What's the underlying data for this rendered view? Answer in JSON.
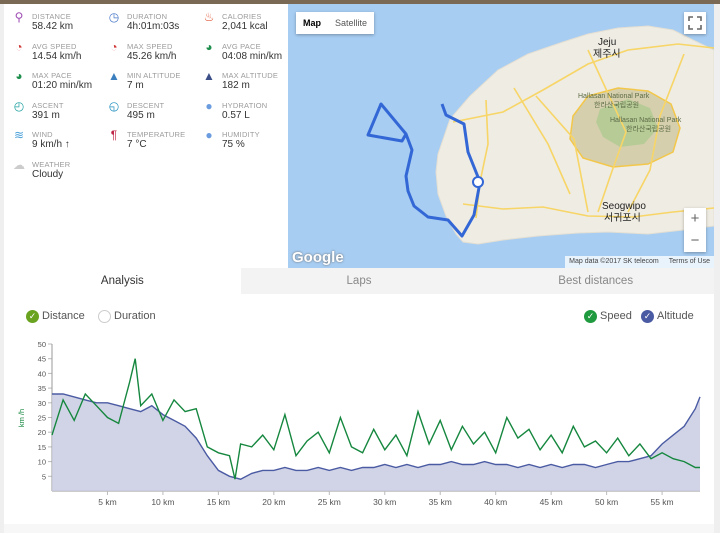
{
  "stats": [
    {
      "label": "DISTANCE",
      "value": "58.42 km",
      "icon": "route-icon",
      "color": "#a04db5"
    },
    {
      "label": "DURATION",
      "value": "4h:01m:03s",
      "icon": "stopwatch-icon",
      "color": "#4a78c8"
    },
    {
      "label": "CALORIES",
      "value": "2,041 kcal",
      "icon": "flame-icon",
      "color": "#e0573a"
    },
    {
      "label": "AVG SPEED",
      "value": "14.54 km/h",
      "icon": "speedometer-icon",
      "color": "#d13b3b"
    },
    {
      "label": "MAX SPEED",
      "value": "45.26 km/h",
      "icon": "speedometer-icon",
      "color": "#d13b3b"
    },
    {
      "label": "AVG PACE",
      "value": "04:08 min/km",
      "icon": "gauge-icon",
      "color": "#1f8f4e"
    },
    {
      "label": "MAX PACE",
      "value": "01:20 min/km",
      "icon": "gauge-icon",
      "color": "#1f8f4e"
    },
    {
      "label": "MIN ALTITUDE",
      "value": "7 m",
      "icon": "mountain-icon",
      "color": "#3b7fbf"
    },
    {
      "label": "MAX ALTITUDE",
      "value": "182 m",
      "icon": "mountain-icon",
      "color": "#3b4e88"
    },
    {
      "label": "ASCENT",
      "value": "391 m",
      "icon": "ascent-icon",
      "color": "#1fa0a0"
    },
    {
      "label": "DESCENT",
      "value": "495 m",
      "icon": "descent-icon",
      "color": "#1f8fbf"
    },
    {
      "label": "HYDRATION",
      "value": "0.57 L",
      "icon": "water-drops-icon",
      "color": "#6b9cdf"
    },
    {
      "label": "WIND",
      "value": "9 km/h ↑",
      "icon": "wind-icon",
      "color": "#4aa0d8"
    },
    {
      "label": "TEMPERATURE",
      "value": "7 °C",
      "icon": "thermometer-icon",
      "color": "#c0284a"
    },
    {
      "label": "HUMIDITY",
      "value": "75 %",
      "icon": "humidity-icon",
      "color": "#6b9cdf"
    },
    {
      "label": "WEATHER",
      "value": "Cloudy",
      "icon": "cloud-icon",
      "color": "#cccccc"
    }
  ],
  "map": {
    "map_type_buttons": [
      "Map",
      "Satellite"
    ],
    "labels": [
      {
        "text": "Jeju",
        "id": "jeju-en"
      },
      {
        "text": "제주시",
        "id": "jeju-ko"
      },
      {
        "text": "Hallasan National Park",
        "id": "hallasan-en-1"
      },
      {
        "text": "한라산국립공원",
        "id": "hallasan-ko-1"
      },
      {
        "text": "Hallasan National Park",
        "id": "hallasan-en-2"
      },
      {
        "text": "한라산국립공원",
        "id": "hallasan-ko-2"
      },
      {
        "text": "Seogwipo",
        "id": "seogwipo-en"
      },
      {
        "text": "서귀포시",
        "id": "seogwipo-ko"
      }
    ],
    "zoom_in": "+",
    "zoom_out": "−",
    "logo": "Google",
    "attribution": "Map data ©2017 SK telecom",
    "terms": "Terms of Use"
  },
  "tabs": [
    "Analysis",
    "Laps",
    "Best distances"
  ],
  "toggles": {
    "distance": "Distance",
    "duration": "Duration",
    "speed": "Speed",
    "altitude": "Altitude"
  },
  "colors": {
    "speed": "#16873f",
    "altitude": "#4b5ba3",
    "altitude_fill": "#c9cde2",
    "check_green": "#1f9a3e",
    "check_lime": "#6aa320"
  },
  "chart_data": {
    "type": "line",
    "ylabel": "km /h",
    "ylim": [
      0,
      50
    ],
    "y_ticks": [
      5,
      10,
      15,
      20,
      25,
      30,
      35,
      40,
      45,
      50
    ],
    "xlim": [
      0,
      58.42
    ],
    "x_ticks": [
      "5 km",
      "10 km",
      "15 km",
      "20 km",
      "25 km",
      "30 km",
      "35 km",
      "40 km",
      "45 km",
      "50 km",
      "55 km"
    ],
    "x_tick_values": [
      5,
      10,
      15,
      20,
      25,
      30,
      35,
      40,
      45,
      50,
      55
    ],
    "series": [
      {
        "name": "Speed",
        "x": [
          0,
          1,
          2,
          3,
          4,
          5,
          6,
          7,
          7.5,
          8,
          9,
          10,
          11,
          12,
          13,
          14,
          15,
          16,
          16.5,
          17,
          18,
          19,
          20,
          21,
          22,
          23,
          24,
          25,
          26,
          27,
          28,
          29,
          30,
          31,
          32,
          33,
          34,
          35,
          36,
          37,
          38,
          39,
          40,
          41,
          42,
          43,
          44,
          45,
          46,
          47,
          48,
          49,
          50,
          51,
          52,
          53,
          54,
          55,
          56,
          57,
          58,
          58.42
        ],
        "y": [
          19,
          31,
          24,
          33,
          29,
          25,
          23,
          37,
          45,
          29,
          33,
          24,
          31,
          27,
          28,
          15,
          13,
          12,
          4,
          16,
          15,
          19,
          14,
          26,
          12,
          17,
          20,
          13,
          25,
          15,
          13,
          21,
          14,
          19,
          12,
          27,
          16,
          24,
          14,
          22,
          16,
          20,
          13,
          25,
          18,
          21,
          14,
          19,
          13,
          22,
          15,
          17,
          13,
          18,
          12,
          16,
          11,
          13,
          11,
          10,
          8,
          8
        ]
      },
      {
        "name": "Altitude",
        "x": [
          0,
          1,
          2,
          3,
          4,
          5,
          6,
          7,
          8,
          9,
          10,
          11,
          12,
          13,
          14,
          15,
          16,
          17,
          18,
          19,
          20,
          21,
          22,
          23,
          24,
          25,
          26,
          27,
          28,
          29,
          30,
          31,
          32,
          33,
          34,
          35,
          36,
          37,
          38,
          39,
          40,
          41,
          42,
          43,
          44,
          45,
          46,
          47,
          48,
          49,
          50,
          51,
          52,
          53,
          54,
          55,
          56,
          57,
          58,
          58.42
        ],
        "y": [
          33,
          33,
          32,
          31,
          30,
          30,
          29,
          28,
          27,
          29,
          26,
          24,
          22,
          18,
          12,
          7,
          5,
          4,
          6,
          7,
          7,
          8,
          7,
          7,
          8,
          7,
          8,
          7,
          8,
          8,
          9,
          8,
          9,
          8,
          9,
          9,
          10,
          9,
          9,
          10,
          9,
          9,
          8,
          9,
          8,
          9,
          8,
          9,
          9,
          8,
          9,
          10,
          10,
          11,
          12,
          16,
          19,
          22,
          28,
          32
        ]
      }
    ]
  }
}
